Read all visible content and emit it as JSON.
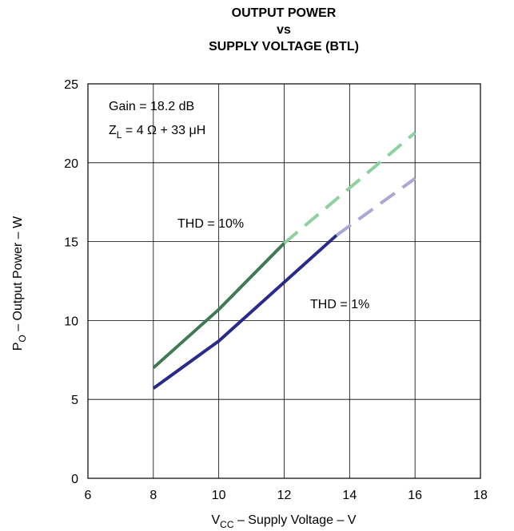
{
  "chart_data": {
    "type": "line",
    "title_lines": [
      "OUTPUT POWER",
      "vs",
      "SUPPLY VOLTAGE (BTL)"
    ],
    "xlabel": {
      "main": "V",
      "sub": "CC",
      "rest": " – Supply Voltage – V"
    },
    "ylabel": {
      "main": "P",
      "sub": "O",
      "rest": " – Output Power – W"
    },
    "xlim": [
      6,
      18
    ],
    "ylim": [
      0,
      25
    ],
    "xticks": [
      6,
      8,
      10,
      12,
      14,
      16,
      18
    ],
    "yticks": [
      0,
      5,
      10,
      15,
      20,
      25
    ],
    "grid": true,
    "annotations": {
      "gain": "Gain = 18.2 dB",
      "zl_main": "Z",
      "zl_sub": "L",
      "zl_rest": " = 4 Ω + 33 μH",
      "thd10": "THD = 10%",
      "thd1": "THD = 1%"
    },
    "series": [
      {
        "name": "THD = 10%",
        "color": "#3f7a55",
        "dash_color": "#8fd09f",
        "solid": {
          "x": [
            8,
            10,
            12
          ],
          "y": [
            7.0,
            10.7,
            14.9
          ]
        },
        "dashed": {
          "x": [
            12,
            16
          ],
          "y": [
            14.9,
            21.9
          ]
        }
      },
      {
        "name": "THD = 1%",
        "color": "#2a2a8a",
        "dash_color": "#aaa6d8",
        "solid": {
          "x": [
            8,
            10,
            13.6
          ],
          "y": [
            5.7,
            8.7,
            15.4
          ]
        },
        "dashed": {
          "x": [
            13.6,
            16
          ],
          "y": [
            15.4,
            19.0
          ]
        }
      }
    ]
  }
}
